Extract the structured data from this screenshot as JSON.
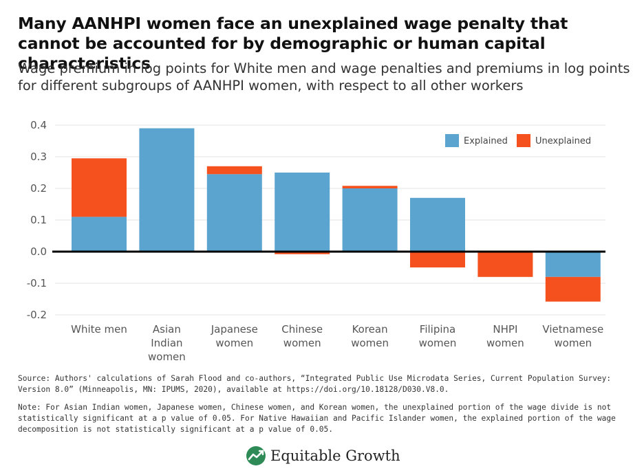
{
  "title": "Many AANHPI women face an unexplained wage penalty that cannot be accounted for by demographic or human capital characteristics",
  "subtitle": "Wage premium in log points for White men and wage penalties and premiums in log points for different subgroups of AANHPI women, with respect to all other workers",
  "source": "Source: Authors' calculations of Sarah Flood and co-authors, “Integrated Public Use Microdata Series, Current Population Survey: Version 8.0” (Minneapolis, MN: IPUMS, 2020), available at https://doi.org/10.18128/D030.V8.0.",
  "note": "Note: For Asian Indian women, Japanese women, Chinese women, and Korean women, the unexplained portion of the wage divide is not statistically significant at a p value of 0.05. For Native Hawaiian and Pacific Islander women, the explained portion of the wage decomposition is not statistically significant at a p value of 0.05.",
  "brand": {
    "name": "Equitable Growth",
    "icon": "equitable-growth-logo-icon"
  },
  "colors": {
    "explained": "#5BA4CF",
    "unexplained": "#F4511E",
    "axis": "#000000",
    "grid": "#e3e3e3"
  },
  "chart_data": {
    "type": "bar",
    "stacked": true,
    "categories": [
      [
        "White men"
      ],
      [
        "Asian",
        "Indian",
        "women"
      ],
      [
        "Japanese",
        "women"
      ],
      [
        "Chinese",
        "women"
      ],
      [
        "Korean",
        "women"
      ],
      [
        "Filipina",
        "women"
      ],
      [
        "NHPI",
        "women"
      ],
      [
        "Vietnamese",
        "women"
      ]
    ],
    "series": [
      {
        "name": "Explained",
        "values": [
          0.11,
          0.39,
          0.245,
          0.25,
          0.2,
          0.17,
          0.0,
          -0.08
        ]
      },
      {
        "name": "Unexplained",
        "values": [
          0.185,
          0.0,
          0.025,
          -0.008,
          0.008,
          -0.05,
          -0.08,
          -0.078
        ]
      }
    ],
    "ylim": [
      -0.2,
      0.4
    ],
    "yticks": [
      "0.4",
      "0.3",
      "0.2",
      "0.1",
      "0.0",
      "-0.1",
      "-0.2"
    ],
    "grid": true,
    "legend_position": "top-right",
    "xlabel": "",
    "ylabel": ""
  }
}
